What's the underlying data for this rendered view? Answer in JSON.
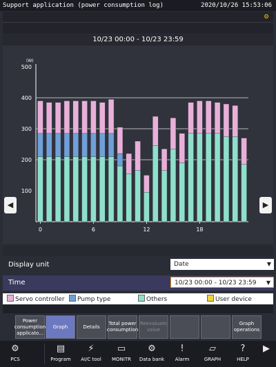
{
  "window": {
    "title": "Support application (power consumption log)",
    "datetime": "2020/10/26 15:53:06"
  },
  "range": "10/23 00:00 - 10/23 23:59",
  "chart_data": {
    "type": "bar",
    "stacked": true,
    "ylabel": "(W)",
    "ylim": [
      0,
      500
    ],
    "yticks": [
      0,
      100,
      200,
      300,
      400,
      500
    ],
    "xticks": [
      0,
      6,
      12,
      18
    ],
    "x": [
      0,
      1,
      2,
      3,
      4,
      5,
      6,
      7,
      8,
      9,
      10,
      11,
      12,
      13,
      14,
      15,
      16,
      17,
      18,
      19,
      20,
      21,
      22,
      23
    ],
    "gridlines": [
      200,
      300,
      400
    ],
    "series": [
      {
        "name": "Others",
        "color": "#8ee0cc",
        "values": [
          210,
          210,
          210,
          210,
          210,
          210,
          210,
          210,
          210,
          180,
          155,
          165,
          95,
          245,
          165,
          235,
          190,
          285,
          285,
          285,
          285,
          275,
          275,
          185
        ]
      },
      {
        "name": "Pump type",
        "color": "#6fa0d8",
        "values": [
          75,
          75,
          75,
          75,
          75,
          75,
          75,
          75,
          75,
          40,
          0,
          0,
          0,
          0,
          0,
          0,
          0,
          0,
          0,
          0,
          0,
          0,
          0,
          0
        ]
      },
      {
        "name": "Servo controller",
        "color": "#e8b0d8",
        "values": [
          105,
          100,
          100,
          105,
          105,
          105,
          105,
          100,
          110,
          85,
          65,
          95,
          55,
          95,
          70,
          100,
          95,
          100,
          105,
          105,
          100,
          105,
          100,
          85
        ]
      },
      {
        "name": "User device",
        "color": "#f0d040",
        "values": [
          0,
          0,
          0,
          0,
          0,
          0,
          0,
          0,
          0,
          0,
          0,
          0,
          0,
          0,
          0,
          0,
          0,
          0,
          0,
          0,
          0,
          0,
          0,
          0
        ]
      }
    ]
  },
  "nav": {
    "prev": "◀",
    "next": "▶"
  },
  "display_unit": {
    "label": "Display unit",
    "value": "Date"
  },
  "time": {
    "label": "Time",
    "value": "10/23 00:00 - 10/23 23:59"
  },
  "legend": [
    {
      "label": "Servo controller",
      "color": "#e8b0d8"
    },
    {
      "label": "Pump type",
      "color": "#6fa0d8"
    },
    {
      "label": "Others",
      "color": "#8ee0cc"
    },
    {
      "label": "User device",
      "color": "#f0d040"
    }
  ],
  "fkeys": [
    {
      "label": "Power consumption applicato...",
      "state": "normal"
    },
    {
      "label": "Graph",
      "state": "active"
    },
    {
      "label": "Details",
      "state": "normal"
    },
    {
      "label": "Total power consumption",
      "state": "normal"
    },
    {
      "label": "Reevaluate value",
      "state": "dim"
    },
    {
      "label": "",
      "state": "normal"
    },
    {
      "label": "",
      "state": "normal"
    },
    {
      "label": "Graph operations",
      "state": "normal"
    }
  ],
  "bottom": [
    {
      "label": "PCS",
      "icon": "⚙"
    },
    {
      "label": "Program",
      "icon": "▤"
    },
    {
      "label": "AI/C tool",
      "icon": "⚡"
    },
    {
      "label": "MONITR",
      "icon": "▭"
    },
    {
      "label": "Data bank",
      "icon": "⚙"
    },
    {
      "label": "Alarm",
      "icon": "!"
    },
    {
      "label": "GRAPH",
      "icon": "▱"
    },
    {
      "label": "HELP",
      "icon": "?"
    },
    {
      "label": "",
      "icon": "▶"
    }
  ]
}
